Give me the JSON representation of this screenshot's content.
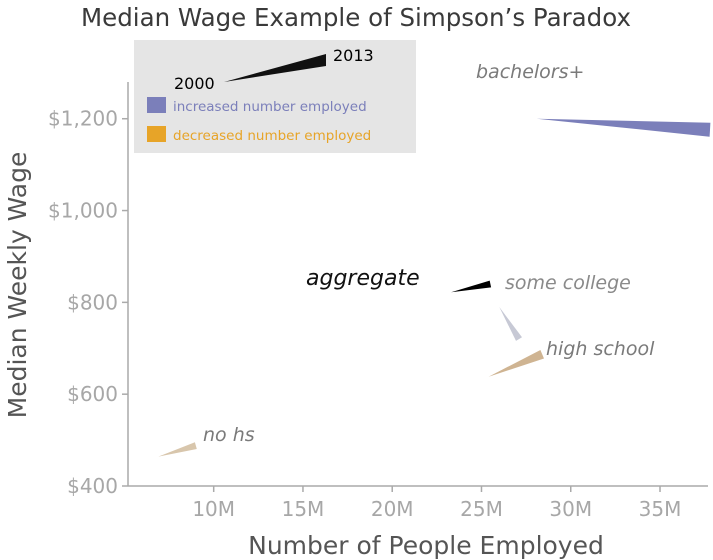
{
  "chart_data": {
    "type": "line",
    "title": "Median Wage Example of Simpson’s Paradox",
    "xlabel": "Number of People Employed",
    "ylabel": "Median Weekly Wage",
    "xlim": [
      5.2,
      37.8
    ],
    "ylim": [
      400,
      1280
    ],
    "x_ticks": [
      {
        "value": 10,
        "label": "10M"
      },
      {
        "value": 15,
        "label": "15M"
      },
      {
        "value": 20,
        "label": "20M"
      },
      {
        "value": 25,
        "label": "25M"
      },
      {
        "value": 30,
        "label": "30M"
      },
      {
        "value": 35,
        "label": "35M"
      }
    ],
    "y_ticks": [
      {
        "value": 400,
        "label": "$400"
      },
      {
        "value": 600,
        "label": "$600"
      },
      {
        "value": 800,
        "label": "$800"
      },
      {
        "value": 1000,
        "label": "$1,000"
      },
      {
        "value": 1200,
        "label": "$1,200"
      }
    ],
    "legend": {
      "position": "top-left",
      "start_label": "2000",
      "end_label": "2013",
      "items": [
        {
          "label": "increased number employed",
          "color": "#7b7fba"
        },
        {
          "label": "decreased number employed",
          "color": "#e7a428"
        }
      ]
    },
    "series": [
      {
        "name": "bachelors+",
        "color": "#7b7fba",
        "x": [
          28.1,
          37.8
        ],
        "y": [
          1200,
          1176
        ]
      },
      {
        "name": "aggregate",
        "color": "#000000",
        "x": [
          23.3,
          25.5
        ],
        "y": [
          822,
          840
        ]
      },
      {
        "name": "some college",
        "color": "#c7c9d5",
        "x": [
          26.0,
          27.1
        ],
        "y": [
          790,
          720
        ]
      },
      {
        "name": "high school",
        "color": "#cfb492",
        "x": [
          25.4,
          28.4
        ],
        "y": [
          638,
          687
        ]
      },
      {
        "name": "no hs",
        "color": "#d8c6ac",
        "x": [
          6.9,
          9.0
        ],
        "y": [
          464,
          488
        ]
      }
    ]
  }
}
